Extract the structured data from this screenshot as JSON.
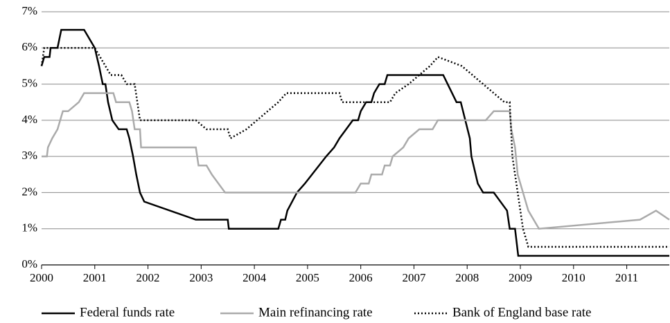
{
  "chart_data": {
    "type": "line",
    "xlim": [
      2000,
      2011.8
    ],
    "xticks": [
      2000,
      2001,
      2002,
      2003,
      2004,
      2005,
      2006,
      2007,
      2008,
      2009,
      2010,
      2011
    ],
    "ylim": [
      0,
      7
    ],
    "yticks": [
      {
        "value": 0,
        "label": "0%"
      },
      {
        "value": 1,
        "label": "1%"
      },
      {
        "value": 2,
        "label": "2%"
      },
      {
        "value": 3,
        "label": "3%"
      },
      {
        "value": 4,
        "label": "4%"
      },
      {
        "value": 5,
        "label": "5%"
      },
      {
        "value": 6,
        "label": "6%"
      },
      {
        "value": 7,
        "label": "7%"
      }
    ],
    "grid": true,
    "legend": "bottom",
    "series": [
      {
        "name": "Federal funds rate",
        "color": "#000000",
        "dash": "solid",
        "x": [
          2000,
          2000.05,
          2000.15,
          2000.17,
          2000.3,
          2000.37,
          2000.8,
          2001,
          2001.08,
          2001.15,
          2001.2,
          2001.25,
          2001.33,
          2001.45,
          2001.6,
          2001.65,
          2001.72,
          2001.78,
          2001.85,
          2001.93,
          2002.9,
          2003.5,
          2003.52,
          2004.45,
          2004.5,
          2004.58,
          2004.62,
          2004.8,
          2004.95,
          2005.35,
          2005.5,
          2005.6,
          2005.85,
          2005.95,
          2006.0,
          2006.1,
          2006.2,
          2006.25,
          2006.35,
          2006.45,
          2006.5,
          2007.55,
          2007.8,
          2007.88,
          2008.05,
          2008.08,
          2008.2,
          2008.3,
          2008.5,
          2008.75,
          2008.8,
          2008.9,
          2008.96,
          2011.8
        ],
        "values": [
          5.5,
          5.75,
          5.75,
          6,
          6,
          6.5,
          6.5,
          6,
          5.5,
          5,
          5,
          4.5,
          4,
          3.75,
          3.75,
          3.5,
          3,
          2.5,
          2,
          1.75,
          1.25,
          1.25,
          1,
          1,
          1.25,
          1.25,
          1.5,
          2,
          2.25,
          3,
          3.25,
          3.5,
          4,
          4,
          4.25,
          4.5,
          4.5,
          4.75,
          5,
          5,
          5.25,
          5.25,
          4.5,
          4.5,
          3.5,
          3,
          2.25,
          2,
          2,
          1.5,
          1,
          1,
          0.25,
          0.25
        ]
      },
      {
        "name": "Main refinancing rate",
        "color": "#aaaaaa",
        "dash": "solid",
        "x": [
          2000,
          2000.1,
          2000.12,
          2000.2,
          2000.3,
          2000.4,
          2000.5,
          2000.7,
          2000.8,
          2001.35,
          2001.4,
          2001.65,
          2001.7,
          2001.75,
          2001.85,
          2001.87,
          2002.9,
          2002.95,
          2003.1,
          2003.2,
          2003.45,
          2005.9,
          2006.0,
          2006.15,
          2006.2,
          2006.4,
          2006.45,
          2006.55,
          2006.6,
          2006.8,
          2006.9,
          2007.1,
          2007.35,
          2007.45,
          2008.35,
          2008.5,
          2008.8,
          2008.83,
          2008.9,
          2008.95,
          2009.05,
          2009.15,
          2009.25,
          2009.35,
          2011.25,
          2011.55,
          2011.8
        ],
        "values": [
          3,
          3,
          3.25,
          3.5,
          3.75,
          4.25,
          4.25,
          4.5,
          4.75,
          4.75,
          4.5,
          4.5,
          4.25,
          3.75,
          3.75,
          3.25,
          3.25,
          2.75,
          2.75,
          2.5,
          2,
          2,
          2.25,
          2.25,
          2.5,
          2.5,
          2.75,
          2.75,
          3,
          3.25,
          3.5,
          3.75,
          3.75,
          4,
          4,
          4.25,
          4.25,
          3.75,
          3.25,
          2.5,
          2,
          1.5,
          1.25,
          1,
          1.25,
          1.5,
          1.25
        ]
      },
      {
        "name": "Bank of England base rate",
        "color": "#000000",
        "dash": "dotted",
        "x": [
          2000,
          2000.05,
          2001,
          2001.1,
          2001.2,
          2001.3,
          2001.5,
          2001.6,
          2001.75,
          2001.8,
          2001.85,
          2002.9,
          2003.1,
          2003.5,
          2003.55,
          2003.85,
          2004.05,
          2004.25,
          2004.45,
          2004.6,
          2005.6,
          2005.65,
          2006.55,
          2006.65,
          2006.9,
          2007.1,
          2007.3,
          2007.45,
          2007.9,
          2008.1,
          2008.3,
          2008.7,
          2008.8,
          2008.85,
          2008.95,
          2009.05,
          2009.15,
          2011.8
        ],
        "values": [
          5.5,
          6,
          6,
          5.75,
          5.5,
          5.25,
          5.25,
          5,
          5,
          4.5,
          4,
          4,
          3.75,
          3.75,
          3.5,
          3.75,
          4,
          4.25,
          4.5,
          4.75,
          4.75,
          4.5,
          4.5,
          4.75,
          5,
          5.25,
          5.5,
          5.75,
          5.5,
          5.25,
          5,
          4.5,
          4.5,
          3,
          2,
          1,
          0.5,
          0.5
        ]
      }
    ]
  }
}
